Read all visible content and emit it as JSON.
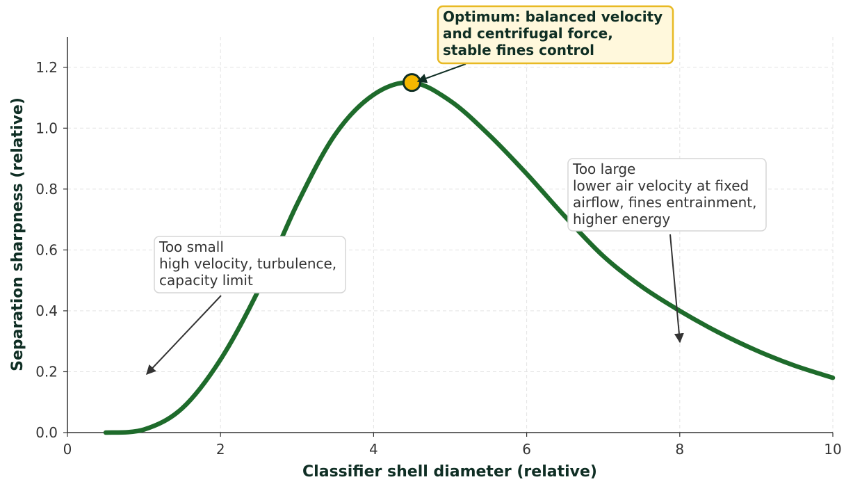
{
  "chart_data": {
    "type": "line",
    "xlabel": "Classifier shell diameter (relative)",
    "ylabel": "Separation sharpness (relative)",
    "xlim": [
      0,
      10
    ],
    "ylim": [
      0,
      1.3
    ],
    "xticks": [
      0,
      2,
      4,
      6,
      8,
      10
    ],
    "yticks": [
      0.0,
      0.2,
      0.4,
      0.6,
      0.8,
      1.0,
      1.2
    ],
    "xtick_labels": [
      "0",
      "2",
      "4",
      "6",
      "8",
      "10"
    ],
    "ytick_labels": [
      "0.0",
      "0.2",
      "0.4",
      "0.6",
      "0.8",
      "1.0",
      "1.2"
    ],
    "grid": true,
    "series": [
      {
        "color": "#1e6b2b",
        "x": [
          0.5,
          1.0,
          1.5,
          2.0,
          2.5,
          3.0,
          3.5,
          4.0,
          4.5,
          5.0,
          5.5,
          6.0,
          6.5,
          7.0,
          7.5,
          8.0,
          8.5,
          9.0,
          9.5,
          10.0
        ],
        "y": [
          0.0,
          0.01,
          0.08,
          0.24,
          0.47,
          0.75,
          0.98,
          1.11,
          1.15,
          1.09,
          0.98,
          0.85,
          0.71,
          0.58,
          0.48,
          0.4,
          0.33,
          0.27,
          0.22,
          0.18
        ]
      }
    ],
    "optimum_point": {
      "x": 4.5,
      "y": 1.15,
      "color": "#f5b800"
    },
    "annotations": [
      {
        "id": "optimum",
        "lines": [
          "Optimum: balanced velocity",
          "and centrifugal force,",
          "stable fines control"
        ],
        "target": {
          "x": 4.5,
          "y": 1.15
        },
        "bg_color": "#fff8dc",
        "border_color": "#e8b923"
      },
      {
        "id": "too-small",
        "lines": [
          "Too small",
          "high velocity, turbulence,",
          "capacity limit"
        ],
        "target": {
          "x": 1.0,
          "y": 0.18
        }
      },
      {
        "id": "too-large",
        "lines": [
          "Too large",
          "lower air velocity at fixed",
          "airflow, fines entrainment,",
          "higher energy"
        ],
        "target": {
          "x": 8.0,
          "y": 0.29
        }
      }
    ]
  }
}
